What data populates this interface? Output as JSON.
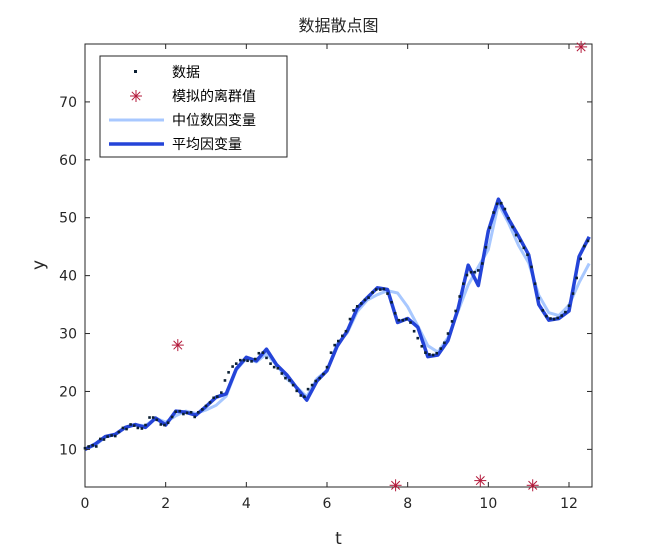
{
  "chart_data": {
    "type": "scatter",
    "title": "数据散点图",
    "xlabel": "t",
    "ylabel": "y",
    "xlim": [
      0,
      12.57
    ],
    "ylim": [
      3.5,
      80
    ],
    "xticks": [
      "0",
      "2",
      "4",
      "6",
      "8",
      "10",
      "12"
    ],
    "yticks": [
      "10",
      "20",
      "30",
      "40",
      "50",
      "60",
      "70"
    ],
    "grid": false,
    "legend_position": "top-left",
    "legend": [
      {
        "label": "数据",
        "kind": "dots",
        "color": "#0b1f33"
      },
      {
        "label": "模拟的离群值",
        "kind": "asterisk",
        "color": "#b3193a"
      },
      {
        "label": "中位数因变量",
        "kind": "line",
        "color": "#a8c8ff"
      },
      {
        "label": "平均因变量",
        "kind": "line",
        "color": "#2444d8"
      }
    ],
    "outliers": {
      "name": "模拟的离群值",
      "points": [
        [
          2.3,
          28
        ],
        [
          7.7,
          3.8
        ],
        [
          9.8,
          4.6
        ],
        [
          11.1,
          3.8
        ],
        [
          12.3,
          79.5
        ]
      ]
    },
    "series": [
      {
        "name": "中位数因变量",
        "x": [
          0,
          0.25,
          0.5,
          0.75,
          1.0,
          1.25,
          1.5,
          1.75,
          2.0,
          2.25,
          2.5,
          2.75,
          3.0,
          3.25,
          3.5,
          3.75,
          4.0,
          4.25,
          4.5,
          4.75,
          5.0,
          5.25,
          5.5,
          5.75,
          6.0,
          6.25,
          6.5,
          6.75,
          7.0,
          7.25,
          7.5,
          7.75,
          8.0,
          8.25,
          8.5,
          8.75,
          9.0,
          9.25,
          9.5,
          9.75,
          10.0,
          10.25,
          10.5,
          10.75,
          11.0,
          11.25,
          11.5,
          11.75,
          12.0,
          12.25,
          12.5
        ],
        "values": [
          10.1,
          10.7,
          12.1,
          12.6,
          13.8,
          14.2,
          14.1,
          15.4,
          14.7,
          15.8,
          16.6,
          16.2,
          16.8,
          17.6,
          19.2,
          23.7,
          25.7,
          25.1,
          26.5,
          24.6,
          22.2,
          20.7,
          19.1,
          22.2,
          23.6,
          28.2,
          30.1,
          33.8,
          35.8,
          36.7,
          37.4,
          37.0,
          34.6,
          31.3,
          27.9,
          26.8,
          29.3,
          33.9,
          38.4,
          41.5,
          44.5,
          52.4,
          49.1,
          45.2,
          42.2,
          36.6,
          33.6,
          33.1,
          34.9,
          38.8,
          42.1
        ]
      },
      {
        "name": "平均因变量",
        "x": [
          0,
          0.25,
          0.5,
          0.75,
          1.0,
          1.25,
          1.5,
          1.75,
          2.0,
          2.25,
          2.5,
          2.75,
          3.0,
          3.25,
          3.5,
          3.75,
          4.0,
          4.25,
          4.5,
          4.75,
          5.0,
          5.25,
          5.5,
          5.75,
          6.0,
          6.25,
          6.5,
          6.75,
          7.0,
          7.25,
          7.5,
          7.75,
          8.0,
          8.25,
          8.5,
          8.75,
          9.0,
          9.25,
          9.5,
          9.75,
          10.0,
          10.25,
          10.5,
          10.75,
          11.0,
          11.25,
          11.5,
          11.75,
          12.0,
          12.25,
          12.5
        ],
        "values": [
          10.0,
          10.9,
          12.2,
          12.6,
          13.8,
          14.3,
          13.8,
          15.4,
          14.2,
          16.6,
          16.4,
          15.9,
          17.4,
          19.0,
          19.6,
          23.9,
          25.9,
          25.3,
          27.3,
          24.6,
          22.9,
          20.6,
          18.5,
          21.8,
          23.6,
          27.8,
          30.4,
          34.4,
          36.2,
          37.9,
          37.6,
          31.9,
          32.6,
          31.1,
          26.0,
          26.3,
          28.8,
          34.3,
          41.8,
          38.3,
          47.7,
          53.2,
          49.8,
          46.8,
          43.6,
          35.0,
          32.3,
          32.6,
          33.9,
          43.3,
          46.7
        ]
      }
    ],
    "scatter_points": [
      [
        0.0,
        10.2
      ],
      [
        0.09,
        10.5
      ],
      [
        0.19,
        10.7
      ],
      [
        0.28,
        10.5
      ],
      [
        0.38,
        11.8
      ],
      [
        0.47,
        11.7
      ],
      [
        0.56,
        12.2
      ],
      [
        0.66,
        12.4
      ],
      [
        0.75,
        12.3
      ],
      [
        0.84,
        13.0
      ],
      [
        0.94,
        13.7
      ],
      [
        1.03,
        13.5
      ],
      [
        1.13,
        14.3
      ],
      [
        1.22,
        14.1
      ],
      [
        1.31,
        13.7
      ],
      [
        1.41,
        13.6
      ],
      [
        1.5,
        14.2
      ],
      [
        1.6,
        15.5
      ],
      [
        1.69,
        15.5
      ],
      [
        1.78,
        15.1
      ],
      [
        1.88,
        14.3
      ],
      [
        1.97,
        14.2
      ],
      [
        2.06,
        14.6
      ],
      [
        2.16,
        15.6
      ],
      [
        2.25,
        16.5
      ],
      [
        2.35,
        16.6
      ],
      [
        2.44,
        16.1
      ],
      [
        2.53,
        16.3
      ],
      [
        2.63,
        16.4
      ],
      [
        2.72,
        15.6
      ],
      [
        2.81,
        16.4
      ],
      [
        2.91,
        16.9
      ],
      [
        3.0,
        17.5
      ],
      [
        3.1,
        18.1
      ],
      [
        3.19,
        18.9
      ],
      [
        3.28,
        19.1
      ],
      [
        3.38,
        19.8
      ],
      [
        3.47,
        21.9
      ],
      [
        3.56,
        23.3
      ],
      [
        3.66,
        24.3
      ],
      [
        3.75,
        24.8
      ],
      [
        3.85,
        25.4
      ],
      [
        3.94,
        25.4
      ],
      [
        4.03,
        25.3
      ],
      [
        4.13,
        25.2
      ],
      [
        4.22,
        25.6
      ],
      [
        4.31,
        26.6
      ],
      [
        4.41,
        26.7
      ],
      [
        4.5,
        25.8
      ],
      [
        4.6,
        24.8
      ],
      [
        4.69,
        24.2
      ],
      [
        4.78,
        24.0
      ],
      [
        4.88,
        23.1
      ],
      [
        4.97,
        22.3
      ],
      [
        5.07,
        21.9
      ],
      [
        5.16,
        21.1
      ],
      [
        5.25,
        20.1
      ],
      [
        5.35,
        19.3
      ],
      [
        5.44,
        19.1
      ],
      [
        5.53,
        20.4
      ],
      [
        5.63,
        21.1
      ],
      [
        5.72,
        21.8
      ],
      [
        5.82,
        22.3
      ],
      [
        5.91,
        23.0
      ],
      [
        6.0,
        24.2
      ],
      [
        6.1,
        26.7
      ],
      [
        6.19,
        28.0
      ],
      [
        6.28,
        28.7
      ],
      [
        6.38,
        29.6
      ],
      [
        6.47,
        30.4
      ],
      [
        6.57,
        32.5
      ],
      [
        6.66,
        34.0
      ],
      [
        6.75,
        34.7
      ],
      [
        6.85,
        35.2
      ],
      [
        6.94,
        35.8
      ],
      [
        7.03,
        36.2
      ],
      [
        7.13,
        37.1
      ],
      [
        7.22,
        37.6
      ],
      [
        7.32,
        37.6
      ],
      [
        7.41,
        37.7
      ],
      [
        7.5,
        36.9
      ],
      [
        7.6,
        35.4
      ],
      [
        7.69,
        33.5
      ],
      [
        7.78,
        32.3
      ],
      [
        7.88,
        32.3
      ],
      [
        7.97,
        32.5
      ],
      [
        8.07,
        31.9
      ],
      [
        8.16,
        30.4
      ],
      [
        8.25,
        29.2
      ],
      [
        8.35,
        27.8
      ],
      [
        8.44,
        26.7
      ],
      [
        8.54,
        26.4
      ],
      [
        8.63,
        26.3
      ],
      [
        8.72,
        26.6
      ],
      [
        8.82,
        27.4
      ],
      [
        8.91,
        28.4
      ],
      [
        9.0,
        30.0
      ],
      [
        9.1,
        32.1
      ],
      [
        9.19,
        33.9
      ],
      [
        9.29,
        36.4
      ],
      [
        9.38,
        38.6
      ],
      [
        9.47,
        40.1
      ],
      [
        9.57,
        40.6
      ],
      [
        9.66,
        40.6
      ],
      [
        9.75,
        40.9
      ],
      [
        9.85,
        42.1
      ],
      [
        9.94,
        44.9
      ],
      [
        10.04,
        48.3
      ],
      [
        10.13,
        50.9
      ],
      [
        10.22,
        52.4
      ],
      [
        10.32,
        52.5
      ],
      [
        10.41,
        51.5
      ],
      [
        10.5,
        49.9
      ],
      [
        10.6,
        48.4
      ],
      [
        10.69,
        47.0
      ],
      [
        10.79,
        46.0
      ],
      [
        10.88,
        44.8
      ],
      [
        10.97,
        43.6
      ],
      [
        11.07,
        41.5
      ],
      [
        11.16,
        38.6
      ],
      [
        11.25,
        36.1
      ],
      [
        11.35,
        34.0
      ],
      [
        11.44,
        33.0
      ],
      [
        11.54,
        32.6
      ],
      [
        11.63,
        32.5
      ],
      [
        11.72,
        32.7
      ],
      [
        11.82,
        33.1
      ],
      [
        11.91,
        33.7
      ],
      [
        12.0,
        34.8
      ],
      [
        12.1,
        36.9
      ],
      [
        12.19,
        39.6
      ],
      [
        12.29,
        42.9
      ],
      [
        12.38,
        45.1
      ],
      [
        12.47,
        46.0
      ]
    ]
  }
}
